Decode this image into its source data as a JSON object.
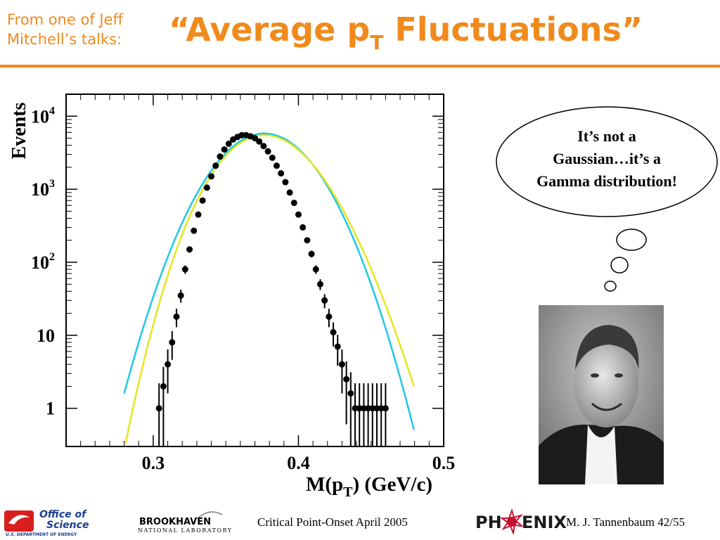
{
  "header": {
    "intro_line1": "From one of Jeff",
    "intro_line2": "Mitchell’s talks:",
    "title_main": "“Average p",
    "title_sub": "T",
    "title_end": " Fluctuations”",
    "accent_color": "#f08a1c"
  },
  "chart_data": {
    "type": "scatter",
    "title": "",
    "ylabel": "Events",
    "xlabel_main": "M(p",
    "xlabel_sub": "T",
    "xlabel_end": ") (GeV/c)",
    "xlim": [
      0.24,
      0.5
    ],
    "ylim": [
      0.3,
      20000
    ],
    "yscale": "log",
    "x_ticks": [
      0.3,
      0.4,
      0.5
    ],
    "x_tick_labels": [
      "0.3",
      "0.4",
      "0.5"
    ],
    "y_ticks": [
      1,
      10,
      100,
      1000,
      10000
    ],
    "y_tick_labels": [
      {
        "base": "1",
        "exp": ""
      },
      {
        "base": "10",
        "exp": ""
      },
      {
        "base": "10",
        "exp": "2"
      },
      {
        "base": "10",
        "exp": "3"
      },
      {
        "base": "10",
        "exp": "4"
      }
    ],
    "series": [
      {
        "kind": "points",
        "color": "#000000",
        "x": [
          0.304,
          0.307,
          0.31,
          0.313,
          0.316,
          0.319,
          0.322,
          0.325,
          0.328,
          0.331,
          0.334,
          0.337,
          0.34,
          0.343,
          0.346,
          0.349,
          0.352,
          0.355,
          0.358,
          0.361,
          0.364,
          0.367,
          0.37,
          0.373,
          0.376,
          0.379,
          0.382,
          0.385,
          0.388,
          0.391,
          0.394,
          0.397,
          0.4,
          0.403,
          0.406,
          0.409,
          0.412,
          0.415,
          0.418,
          0.421,
          0.424,
          0.427,
          0.43,
          0.433,
          0.436,
          0.439,
          0.442,
          0.445,
          0.448,
          0.451,
          0.454,
          0.457,
          0.46
        ],
        "y": [
          1,
          2,
          4,
          8,
          18,
          35,
          80,
          150,
          270,
          450,
          700,
          1050,
          1500,
          2100,
          2800,
          3500,
          4200,
          4800,
          5200,
          5500,
          5500,
          5300,
          5000,
          4500,
          3900,
          3300,
          2700,
          2100,
          1650,
          1250,
          900,
          650,
          450,
          300,
          200,
          130,
          80,
          50,
          30,
          18,
          11,
          7,
          4,
          2.5,
          1.6,
          1,
          1,
          1,
          1,
          1,
          1,
          1,
          1
        ]
      },
      {
        "kind": "line",
        "name": "",
        "color": "#1ec8e6",
        "function": "gaussian",
        "amplitude": 5800,
        "mean": 0.3765,
        "sigma": 0.02383
      },
      {
        "kind": "line",
        "name": "",
        "color": "#e6e61e",
        "function": "gamma",
        "amplitude": 5500,
        "mode": 0.3765,
        "sigma": 0.02383
      }
    ]
  },
  "bubble": {
    "line1": "It’s not a",
    "line2": "Gaussian…it’s a",
    "line3": "Gamma distribution!"
  },
  "footer": {
    "doe_line1": "Office of",
    "doe_line2": "Science",
    "doe_line3": "U.S. DEPARTMENT OF ENERGY",
    "bnl_line1": "BROOKHAVEN",
    "bnl_line2": "NATIONAL LABORATORY",
    "center_text": "Critical Point-Onset April 2005",
    "phenix_left": "PH",
    "phenix_right": "ENIX",
    "author_page": "M. J. Tannenbaum   42/55"
  }
}
